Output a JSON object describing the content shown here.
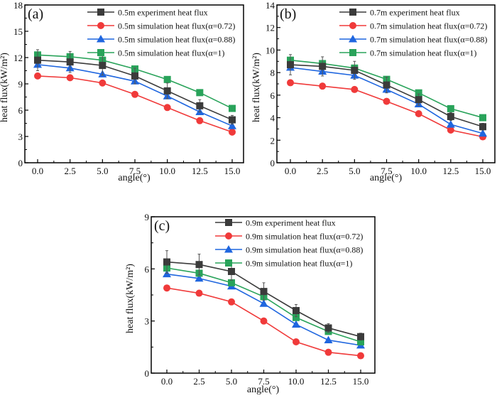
{
  "chart_data": [
    {
      "type": "line",
      "panel_label": "(a)",
      "xlabel": "angle(°)",
      "ylabel": "heat flux(kW/m²)",
      "x": [
        0.0,
        2.5,
        5.0,
        7.5,
        10.0,
        12.5,
        15.0
      ],
      "x_tick_labels": [
        "0.0",
        "2.5",
        "5.0",
        "7.5",
        "10.0",
        "12.5",
        "15.0"
      ],
      "xlim": [
        -1.0,
        16.0
      ],
      "ylim": [
        0,
        18
      ],
      "y_ticks": [
        0,
        3,
        6,
        9,
        12,
        15,
        18
      ],
      "y_tick_labels": [
        "0",
        "3",
        "6",
        "9",
        "12",
        "15",
        "18"
      ],
      "legend_position": "top-right",
      "series": [
        {
          "name": "0.5m experiment heat flux",
          "marker": "square",
          "color": "#3b3b3b",
          "values": [
            11.7,
            11.5,
            11.1,
            9.9,
            8.2,
            6.5,
            4.9
          ],
          "error": [
            1.2,
            1.2,
            1.1,
            0.9,
            0.9,
            0.7,
            0.5
          ]
        },
        {
          "name": "0.5m simulation heat flux(α=0.72)",
          "marker": "circle",
          "color": "#f03a3a",
          "values": [
            9.9,
            9.7,
            9.1,
            7.8,
            6.3,
            4.8,
            3.5
          ]
        },
        {
          "name": "0.5m simulation heat flux(α=0.88)",
          "marker": "triangle",
          "color": "#1f66df",
          "values": [
            11.2,
            10.8,
            10.1,
            9.3,
            7.6,
            5.8,
            4.2
          ]
        },
        {
          "name": "0.5m simulation heat flux(α=1)",
          "marker": "square",
          "color": "#29a35a",
          "values": [
            12.3,
            12.1,
            11.7,
            10.7,
            9.5,
            8.0,
            6.2
          ]
        }
      ]
    },
    {
      "type": "line",
      "panel_label": "(b)",
      "xlabel": "angle(°)",
      "ylabel": "heat flux(kW/m²)",
      "x": [
        0.0,
        2.5,
        5.0,
        7.5,
        10.0,
        12.5,
        15.0
      ],
      "x_tick_labels": [
        "0.0",
        "2.5",
        "5.0",
        "7.5",
        "10.0",
        "12.5",
        "15.0"
      ],
      "xlim": [
        -1.0,
        16.0
      ],
      "ylim": [
        0,
        14
      ],
      "y_ticks": [
        0,
        2,
        4,
        6,
        8,
        10,
        12,
        14
      ],
      "y_tick_labels": [
        "0",
        "2",
        "4",
        "6",
        "8",
        "10",
        "12",
        "14"
      ],
      "legend_position": "top-right",
      "series": [
        {
          "name": "0.7m experiment heat flux",
          "marker": "square",
          "color": "#3b3b3b",
          "values": [
            8.7,
            8.55,
            8.2,
            6.9,
            5.6,
            4.1,
            3.2
          ],
          "error": [
            0.9,
            0.85,
            0.8,
            0.7,
            0.5,
            0.35,
            0.3
          ]
        },
        {
          "name": "0.7m simulation heat flux(α=0.72)",
          "marker": "circle",
          "color": "#f03a3a",
          "values": [
            7.1,
            6.8,
            6.5,
            5.45,
            4.35,
            2.9,
            2.3
          ]
        },
        {
          "name": "0.7m simulation heat flux(α=0.88)",
          "marker": "triangle",
          "color": "#1f66df",
          "values": [
            8.45,
            8.1,
            7.75,
            6.5,
            5.2,
            3.4,
            2.6
          ]
        },
        {
          "name": "0.7m simulation heat flux(α=1)",
          "marker": "square",
          "color": "#29a35a",
          "values": [
            9.1,
            8.8,
            8.4,
            7.4,
            6.2,
            4.8,
            4.0
          ]
        }
      ]
    },
    {
      "type": "line",
      "panel_label": "(c)",
      "xlabel": "angle(°)",
      "ylabel": "heat flux(kW/m²)",
      "x": [
        0.0,
        2.5,
        5.0,
        7.5,
        10.0,
        12.5,
        15.0
      ],
      "x_tick_labels": [
        "0.0",
        "2.5",
        "5.0",
        "7.5",
        "10.0",
        "12.5",
        "15.0"
      ],
      "xlim": [
        -1.0,
        16.0
      ],
      "ylim": [
        0,
        9
      ],
      "y_ticks": [
        0,
        3,
        6,
        9
      ],
      "y_tick_labels": [
        "0",
        "3",
        "6",
        "9"
      ],
      "legend_position": "top-right",
      "series": [
        {
          "name": "0.9m experiment heat flux",
          "marker": "square",
          "color": "#3b3b3b",
          "values": [
            6.4,
            6.25,
            5.85,
            4.7,
            3.6,
            2.6,
            2.1
          ],
          "error": [
            0.65,
            0.6,
            0.5,
            0.5,
            0.35,
            0.25,
            0.2
          ]
        },
        {
          "name": "0.9m simulation heat flux(α=0.72)",
          "marker": "circle",
          "color": "#f03a3a",
          "values": [
            4.9,
            4.6,
            4.1,
            3.0,
            1.8,
            1.2,
            1.0
          ]
        },
        {
          "name": "0.9m simulation heat flux(α=0.88)",
          "marker": "triangle",
          "color": "#1f66df",
          "values": [
            5.7,
            5.45,
            5.0,
            4.0,
            2.8,
            1.9,
            1.6
          ]
        },
        {
          "name": "0.9m simulation heat flux(α=1)",
          "marker": "square",
          "color": "#29a35a",
          "values": [
            6.05,
            5.75,
            5.2,
            4.4,
            3.2,
            2.4,
            1.8
          ]
        }
      ]
    }
  ]
}
